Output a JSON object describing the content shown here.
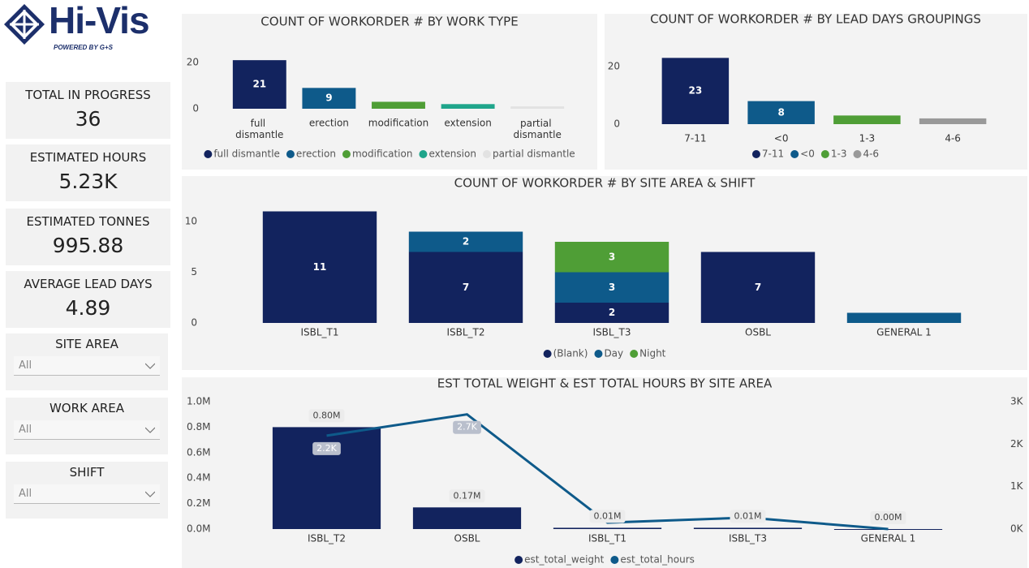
{
  "logo": {
    "name": "Hi-Vis",
    "tagline": "POWERED BY G+S"
  },
  "kpis": [
    {
      "label": "TOTAL IN PROGRESS",
      "value": "36"
    },
    {
      "label": "ESTIMATED HOURS",
      "value": "5.23K"
    },
    {
      "label": "ESTIMATED TONNES",
      "value": "995.88"
    },
    {
      "label": "AVERAGE LEAD DAYS",
      "value": "4.89"
    }
  ],
  "slicers": [
    {
      "label": "SITE AREA",
      "selection": "All"
    },
    {
      "label": "WORK AREA",
      "selection": "All"
    },
    {
      "label": "SHIFT",
      "selection": "All"
    }
  ],
  "chart_data": [
    {
      "type": "bar",
      "title": "COUNT OF WORKORDER # BY WORK TYPE",
      "categories": [
        "full dismantle",
        "erection",
        "modification",
        "extension",
        "partial dismantle"
      ],
      "values": [
        21,
        9,
        3,
        2,
        1
      ],
      "colors": [
        "#12235e",
        "#0e5a8a",
        "#4f9e36",
        "#1fa58b",
        "#e2e2e2"
      ],
      "ylim": [
        0,
        22
      ],
      "yticks": [
        0,
        20
      ]
    },
    {
      "type": "bar",
      "title": "COUNT OF WORKORDER # BY LEAD DAYS GROUPINGS",
      "categories": [
        "7-11",
        "<0",
        "1-3",
        "4-6"
      ],
      "values": [
        23,
        8,
        3,
        2
      ],
      "colors": [
        "#12235e",
        "#0e5a8a",
        "#4f9e36",
        "#999999"
      ],
      "ylim": [
        0,
        24
      ],
      "yticks": [
        0,
        20
      ]
    },
    {
      "type": "stacked_bar",
      "title": "COUNT OF WORKORDER # BY SITE AREA & SHIFT",
      "categories": [
        "ISBL_T1",
        "ISBL_T2",
        "ISBL_T3",
        "OSBL",
        "GENERAL 1"
      ],
      "series": [
        {
          "name": "(Blank)",
          "color": "#12235e",
          "values": [
            11,
            7,
            2,
            7,
            null
          ]
        },
        {
          "name": "Day",
          "color": "#0e5a8a",
          "values": [
            null,
            2,
            3,
            null,
            1
          ]
        },
        {
          "name": "Night",
          "color": "#4f9e36",
          "values": [
            null,
            null,
            3,
            null,
            null
          ]
        }
      ],
      "ylim": [
        0,
        12
      ],
      "yticks": [
        0,
        5,
        10
      ]
    },
    {
      "type": "combo",
      "title": "EST TOTAL WEIGHT & EST TOTAL HOURS BY SITE AREA",
      "categories": [
        "ISBL_T2",
        "OSBL",
        "ISBL_T1",
        "ISBL_T3",
        "GENERAL 1"
      ],
      "series": [
        {
          "name": "est_total_weight",
          "color": "#12235e",
          "values": [
            800000,
            170000,
            10000,
            10000,
            0
          ],
          "value_labels": [
            "0.80M",
            "0.17M",
            "0.01M",
            "0.01M",
            "0.00M"
          ]
        },
        {
          "name": "est_total_hours",
          "color": "#0e5a8a",
          "axis": "y2",
          "values": [
            2200,
            2700,
            150,
            270,
            0
          ],
          "value_labels": [
            "2.2K",
            "2.7K",
            null,
            null,
            null
          ]
        }
      ],
      "ylim": [
        0,
        1000000
      ],
      "yticks": [
        {
          "value": 0,
          "label": "0.0M"
        },
        {
          "value": 200000,
          "label": "0.2M"
        },
        {
          "value": 400000,
          "label": "0.4M"
        },
        {
          "value": 600000,
          "label": "0.6M"
        },
        {
          "value": 800000,
          "label": "0.8M"
        },
        {
          "value": 1000000,
          "label": "1.0M"
        }
      ],
      "y2lim": [
        0,
        3000
      ],
      "y2ticks": [
        {
          "value": 0,
          "label": "0K"
        },
        {
          "value": 1000,
          "label": "1K"
        },
        {
          "value": 2000,
          "label": "2K"
        },
        {
          "value": 3000,
          "label": "3K"
        }
      ]
    }
  ]
}
